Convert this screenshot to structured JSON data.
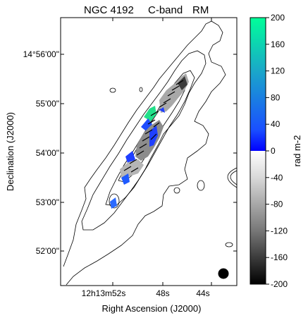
{
  "figure": {
    "title_parts": [
      "NGC 4192",
      "C-band",
      "RM"
    ],
    "xlabel": "Right Ascension (J2000)",
    "ylabel": "Declination (J2000)",
    "ra_ticks": [
      "12h13m52s",
      "48s",
      "44s"
    ],
    "dec_ticks": [
      "14°56'00\"",
      "55'00\"",
      "54'00\"",
      "53'00\"",
      "52'00\""
    ]
  },
  "colorbar": {
    "label": "rad m-2",
    "ticks": [
      "200",
      "160",
      "120",
      "80",
      "40",
      "0",
      "-40",
      "-80",
      "-120",
      "-160",
      "-200"
    ],
    "min": -200,
    "max": 200,
    "colors": {
      "top": "#00ff99",
      "mid_upper": "#1a7fff",
      "zero_edge": "#0000ff",
      "zero_white": "#ffffff",
      "bottom": "#000000"
    }
  }
}
